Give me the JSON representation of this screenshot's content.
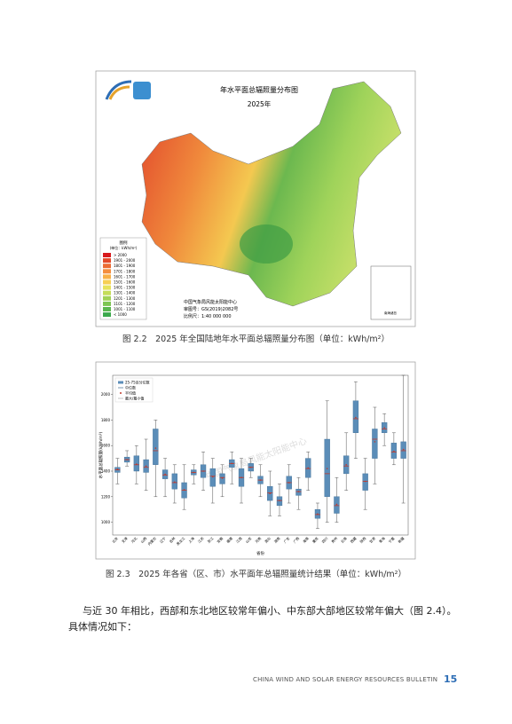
{
  "map": {
    "title": "年水平面总辐照量分布图",
    "subtitle": "2025年",
    "legend_title": "图例",
    "legend_unit": "(单位：kWh/m²)",
    "legend": [
      "> 2000",
      "1901 - 2000",
      "1801 - 1900",
      "1701 - 1800",
      "1601 - 1700",
      "1501 - 1600",
      "1401 - 1500",
      "1301 - 1400",
      "1201 - 1300",
      "1101 - 1200",
      "1001 - 1100",
      "< 1000"
    ],
    "colors": [
      "#d7191c",
      "#e34a2a",
      "#ec6c34",
      "#f48e3f",
      "#f8b048",
      "#f7cf55",
      "#e7e35c",
      "#c5dd5a",
      "#a1d257",
      "#7dc553",
      "#5ab74f",
      "#3aa84b"
    ],
    "credits": [
      "中国气象局风能太阳能中心",
      "审图号：GS(2019)2082号",
      "比例尺：1:40 000 000"
    ],
    "inset": "南海诸岛"
  },
  "captions": [
    "图 2.2　2025 年全国陆地年水平面总辐照量分布图（单位：kWh/m²）",
    "图 2.3　2025 年各省（区、市）水平面年总辐照量统计结果（单位：kWh/m²）"
  ],
  "chart_data": {
    "type": "box",
    "y_label": "水平面总辐照量(kWh/m²)",
    "x_label": "省份",
    "watermark": "中国气象局风能太阳能中心",
    "legend": [
      "25-75百分位数",
      "中位数",
      "平均值",
      "最大/最小值"
    ],
    "color": "#5b8db8",
    "median_color": "#c0392b",
    "categories": [
      "北京",
      "天津",
      "河北",
      "山西",
      "内蒙古",
      "辽宁",
      "吉林",
      "黑龙江",
      "上海",
      "江苏",
      "浙江",
      "安徽",
      "福建",
      "江西",
      "山东",
      "河南",
      "湖北",
      "湖南",
      "广东",
      "广西",
      "海南",
      "重庆",
      "四川",
      "贵州",
      "云南",
      "西藏",
      "陕西",
      "甘肃",
      "青海",
      "宁夏",
      "新疆"
    ],
    "min": [
      1300,
      1440,
      1300,
      1250,
      1200,
      1200,
      1150,
      1100,
      1300,
      1250,
      1150,
      1200,
      1300,
      1150,
      1350,
      1200,
      1050,
      1050,
      1150,
      1100,
      1250,
      950,
      1000,
      1000,
      1250,
      1500,
      1100,
      1300,
      1600,
      1450,
      1150
    ],
    "q1": [
      1390,
      1470,
      1400,
      1390,
      1450,
      1340,
      1260,
      1190,
      1370,
      1350,
      1280,
      1300,
      1430,
      1280,
      1400,
      1300,
      1170,
      1130,
      1260,
      1210,
      1350,
      1030,
      1200,
      1070,
      1380,
      1700,
      1250,
      1500,
      1700,
      1500,
      1500
    ],
    "median": [
      1410,
      1490,
      1450,
      1430,
      1560,
      1370,
      1310,
      1250,
      1390,
      1400,
      1360,
      1350,
      1460,
      1350,
      1430,
      1330,
      1230,
      1170,
      1310,
      1240,
      1420,
      1060,
      1380,
      1130,
      1440,
      1810,
      1320,
      1650,
      1730,
      1550,
      1560
    ],
    "q3": [
      1430,
      1510,
      1520,
      1490,
      1730,
      1410,
      1380,
      1310,
      1410,
      1450,
      1420,
      1380,
      1490,
      1420,
      1460,
      1360,
      1280,
      1200,
      1360,
      1260,
      1500,
      1100,
      1650,
      1200,
      1520,
      1950,
      1380,
      1730,
      1780,
      1620,
      1630
    ],
    "max": [
      1500,
      1560,
      1600,
      1650,
      1800,
      1500,
      1450,
      1450,
      1450,
      1550,
      1500,
      1450,
      1550,
      1500,
      1500,
      1450,
      1400,
      1300,
      1450,
      1350,
      1550,
      1150,
      1950,
      1350,
      1700,
      2100,
      1500,
      1900,
      1850,
      1700,
      2150
    ],
    "mean": [
      1415,
      1490,
      1455,
      1440,
      1580,
      1375,
      1315,
      1255,
      1390,
      1400,
      1355,
      1345,
      1460,
      1350,
      1430,
      1330,
      1225,
      1170,
      1310,
      1240,
      1425,
      1065,
      1420,
      1140,
      1450,
      1820,
      1320,
      1630,
      1740,
      1555,
      1570
    ],
    "ylim": [
      900,
      2150
    ],
    "yticks": [
      1000,
      1200,
      1400,
      1600,
      1800,
      2000
    ]
  },
  "body": [
    "与近 30 年相比，西部和东北地区较常年偏小、中东部大部地区较常年偏大（图 2.4）。",
    "具体情况如下："
  ],
  "footer": {
    "bulletin": "CHINA WIND AND SOLAR ENERGY RESOURCES BULLETIN",
    "page": "15"
  }
}
